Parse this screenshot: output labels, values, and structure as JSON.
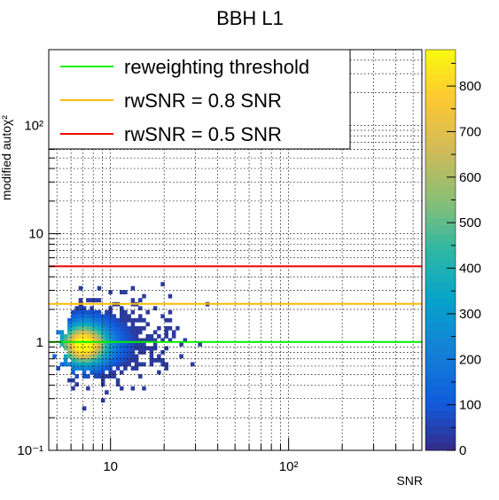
{
  "chart_data": {
    "type": "heatmap",
    "title": "BBH L1",
    "xlabel": "SNR",
    "ylabel": "modified autoχ²",
    "xscale": "log",
    "yscale": "log",
    "xlim": [
      4.5,
      560
    ],
    "ylim": [
      0.1,
      500
    ],
    "xticks": [
      10,
      100
    ],
    "xtick_labels": [
      "10",
      "10²"
    ],
    "yticks": [
      0.1,
      1,
      10,
      100
    ],
    "ytick_labels": [
      "10⁻¹",
      "1",
      "10",
      "10²"
    ],
    "grid": true,
    "legend_position": "top-left",
    "lines": [
      {
        "name": "reweighting threshold",
        "y": 1.0,
        "color": "#00ee00"
      },
      {
        "name": "rwSNR = 0.8 SNR",
        "y": 2.25,
        "color": "#ffbb00"
      },
      {
        "name": "rwSNR = 0.5 SNR",
        "y": 5.0,
        "color": "#ee0000"
      }
    ],
    "density": {
      "peak_snr": 7.0,
      "peak_chi2": 0.95,
      "peak_count": 880
    },
    "colorbar": {
      "min": 0,
      "max": 880,
      "ticks": [
        0,
        100,
        200,
        300,
        400,
        500,
        600,
        700,
        800
      ],
      "tick_labels": [
        "0",
        "100",
        "200",
        "300",
        "400",
        "500",
        "600",
        "700",
        "800"
      ]
    }
  }
}
